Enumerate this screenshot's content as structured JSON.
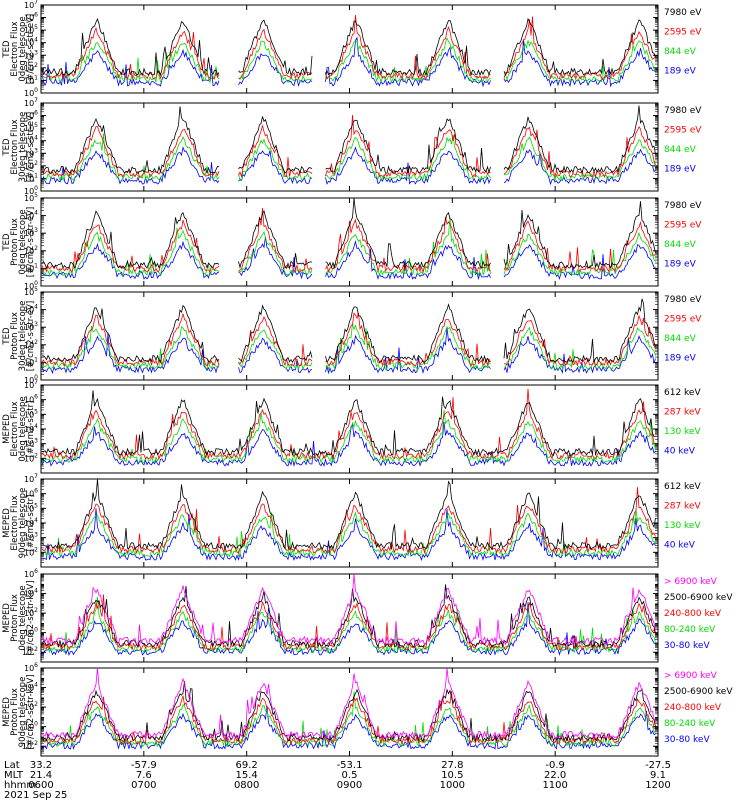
{
  "chart_data": [
    {
      "type": "line",
      "ylabel": "TED\nElectron Flux\n0deg telescope\n[#/cm2-s-str-eV]",
      "ylim_exp": [
        0,
        7
      ],
      "tick_exps": [
        0,
        1,
        2,
        3,
        4,
        5,
        6,
        7
      ],
      "series": [
        {
          "name": "7980 eV",
          "color": "#000000"
        },
        {
          "name": "2595 eV",
          "color": "#ff0000"
        },
        {
          "name": "844 eV",
          "color": "#00dd00"
        },
        {
          "name": "189 eV",
          "color": "#0000ff"
        }
      ]
    },
    {
      "type": "line",
      "ylabel": "TED\nElectron Flux\n30deg telescope\n[#/cm2-s-str-eV]",
      "ylim_exp": [
        0,
        7
      ],
      "tick_exps": [
        0,
        1,
        2,
        3,
        4,
        5,
        6,
        7
      ],
      "series": [
        {
          "name": "7980 eV",
          "color": "#000000"
        },
        {
          "name": "2595 eV",
          "color": "#ff0000"
        },
        {
          "name": "844 eV",
          "color": "#00dd00"
        },
        {
          "name": "189 eV",
          "color": "#0000ff"
        }
      ]
    },
    {
      "type": "line",
      "ylabel": "TED\nProton Flux\n0deg telescope\n[#/cm2-s-str-eV]",
      "ylim_exp": [
        0,
        5
      ],
      "tick_exps": [
        0,
        1,
        2,
        3,
        4,
        5
      ],
      "series": [
        {
          "name": "7980 eV",
          "color": "#000000"
        },
        {
          "name": "2595 eV",
          "color": "#ff0000"
        },
        {
          "name": "844 eV",
          "color": "#00dd00"
        },
        {
          "name": "189 eV",
          "color": "#0000ff"
        }
      ]
    },
    {
      "type": "line",
      "ylabel": "TED\nProton Flux\n30deg telescope\n[#/cm2-s-str-eV]",
      "ylim_exp": [
        0,
        5
      ],
      "tick_exps": [
        0,
        1,
        2,
        3,
        4,
        5
      ],
      "series": [
        {
          "name": "7980 eV",
          "color": "#000000"
        },
        {
          "name": "2595 eV",
          "color": "#ff0000"
        },
        {
          "name": "844 eV",
          "color": "#00dd00"
        },
        {
          "name": "189 eV",
          "color": "#0000ff"
        }
      ]
    },
    {
      "type": "line",
      "ylabel": "MEPED\nElectron Flux\n0deg telescope\n[#/cm2-s-str]",
      "ylim_exp": [
        1,
        7
      ],
      "tick_exps": [
        2,
        3,
        4,
        5,
        6,
        7
      ],
      "series": [
        {
          "name": "612 keV",
          "color": "#000000"
        },
        {
          "name": "287 keV",
          "color": "#ff0000"
        },
        {
          "name": "130 keV",
          "color": "#00dd00"
        },
        {
          "name": "40 keV",
          "color": "#0000ff"
        }
      ]
    },
    {
      "type": "line",
      "ylabel": "MEPED\nElectron Flux\n90deg telescope\n[#/cm2-s-str]",
      "ylim_exp": [
        1,
        7
      ],
      "tick_exps": [
        2,
        3,
        4,
        5,
        6,
        7
      ],
      "series": [
        {
          "name": "612 keV",
          "color": "#000000"
        },
        {
          "name": "287 keV",
          "color": "#ff0000"
        },
        {
          "name": "130 keV",
          "color": "#00dd00"
        },
        {
          "name": "40 keV",
          "color": "#0000ff"
        }
      ]
    },
    {
      "type": "line",
      "ylabel": "MEPED\nProton Flux\n0deg telescope\n[#/cm2-s-str-keV]",
      "ylim_exp": [
        -3,
        6
      ],
      "tick_exps": [
        -2,
        0,
        2,
        4,
        6
      ],
      "series": [
        {
          "name": "> 6900 keV",
          "color": "#ff00ff"
        },
        {
          "name": "2500-6900 keV",
          "color": "#000000"
        },
        {
          "name": "240-800 keV",
          "color": "#ff0000"
        },
        {
          "name": "80-240 keV",
          "color": "#00dd00"
        },
        {
          "name": "30-80 keV",
          "color": "#0000ff"
        }
      ]
    },
    {
      "type": "line",
      "ylabel": "MEPED\nProton Flux\n90deg telescope\n[#/cm2-s-str-keV]",
      "ylim_exp": [
        -3,
        6
      ],
      "tick_exps": [
        -2,
        0,
        2,
        4,
        6
      ],
      "series": [
        {
          "name": "> 6900 keV",
          "color": "#ff00ff"
        },
        {
          "name": "2500-6900 keV",
          "color": "#000000"
        },
        {
          "name": "240-800 keV",
          "color": "#ff0000"
        },
        {
          "name": "80-240 keV",
          "color": "#00dd00"
        },
        {
          "name": "30-80 keV",
          "color": "#0000ff"
        }
      ]
    }
  ],
  "x_axis": {
    "row_labels": [
      "Lat",
      "MLT",
      "hhmm"
    ],
    "date": "2021 Sep 25",
    "ticks": [
      {
        "lat": "33.2",
        "mlt": "21.4",
        "hhmm": "0600"
      },
      {
        "lat": "-57.9",
        "mlt": "7.6",
        "hhmm": "0700"
      },
      {
        "lat": "69.2",
        "mlt": "15.4",
        "hhmm": "0800"
      },
      {
        "lat": "-53.1",
        "mlt": "0.5",
        "hhmm": "0900"
      },
      {
        "lat": "27.8",
        "mlt": "10.5",
        "hhmm": "1000"
      },
      {
        "lat": "-0.9",
        "mlt": "22.0",
        "hhmm": "1100"
      },
      {
        "lat": "-27.5",
        "mlt": "9.1",
        "hhmm": "1200"
      }
    ]
  }
}
